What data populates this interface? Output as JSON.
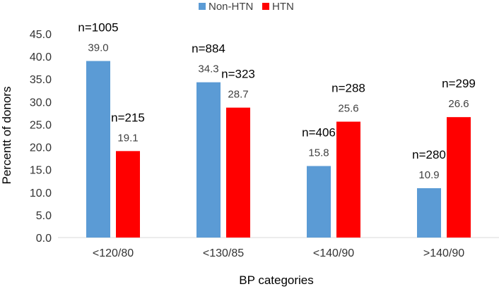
{
  "chart_data": {
    "type": "bar",
    "categories": [
      "<120/80",
      "<130/85",
      "<140/90",
      ">140/90"
    ],
    "series": [
      {
        "name": "Non-HTN",
        "color": "#5b9bd5",
        "values": [
          39.0,
          34.3,
          15.8,
          10.9
        ],
        "value_labels": [
          "39.0",
          "34.3",
          "15.8",
          "10.9"
        ],
        "n_labels": [
          "n=1005",
          "n=884",
          "n=406",
          "n=280"
        ]
      },
      {
        "name": "HTN",
        "color": "#ff0000",
        "values": [
          19.1,
          28.7,
          25.6,
          26.6
        ],
        "value_labels": [
          "19.1",
          "28.7",
          "25.6",
          "26.6"
        ],
        "n_labels": [
          "n=215",
          "n=323",
          "n=288",
          "n=299"
        ]
      }
    ],
    "title": "",
    "xlabel": "BP categories",
    "ylabel": "Percentt of donors",
    "ylim": [
      0,
      45
    ],
    "yticks": [
      "0.0",
      "5.0",
      "10.0",
      "15.0",
      "20.0",
      "25.0",
      "30.0",
      "35.0",
      "40.0",
      "45.0"
    ],
    "grid": false,
    "legend": "top-center"
  }
}
